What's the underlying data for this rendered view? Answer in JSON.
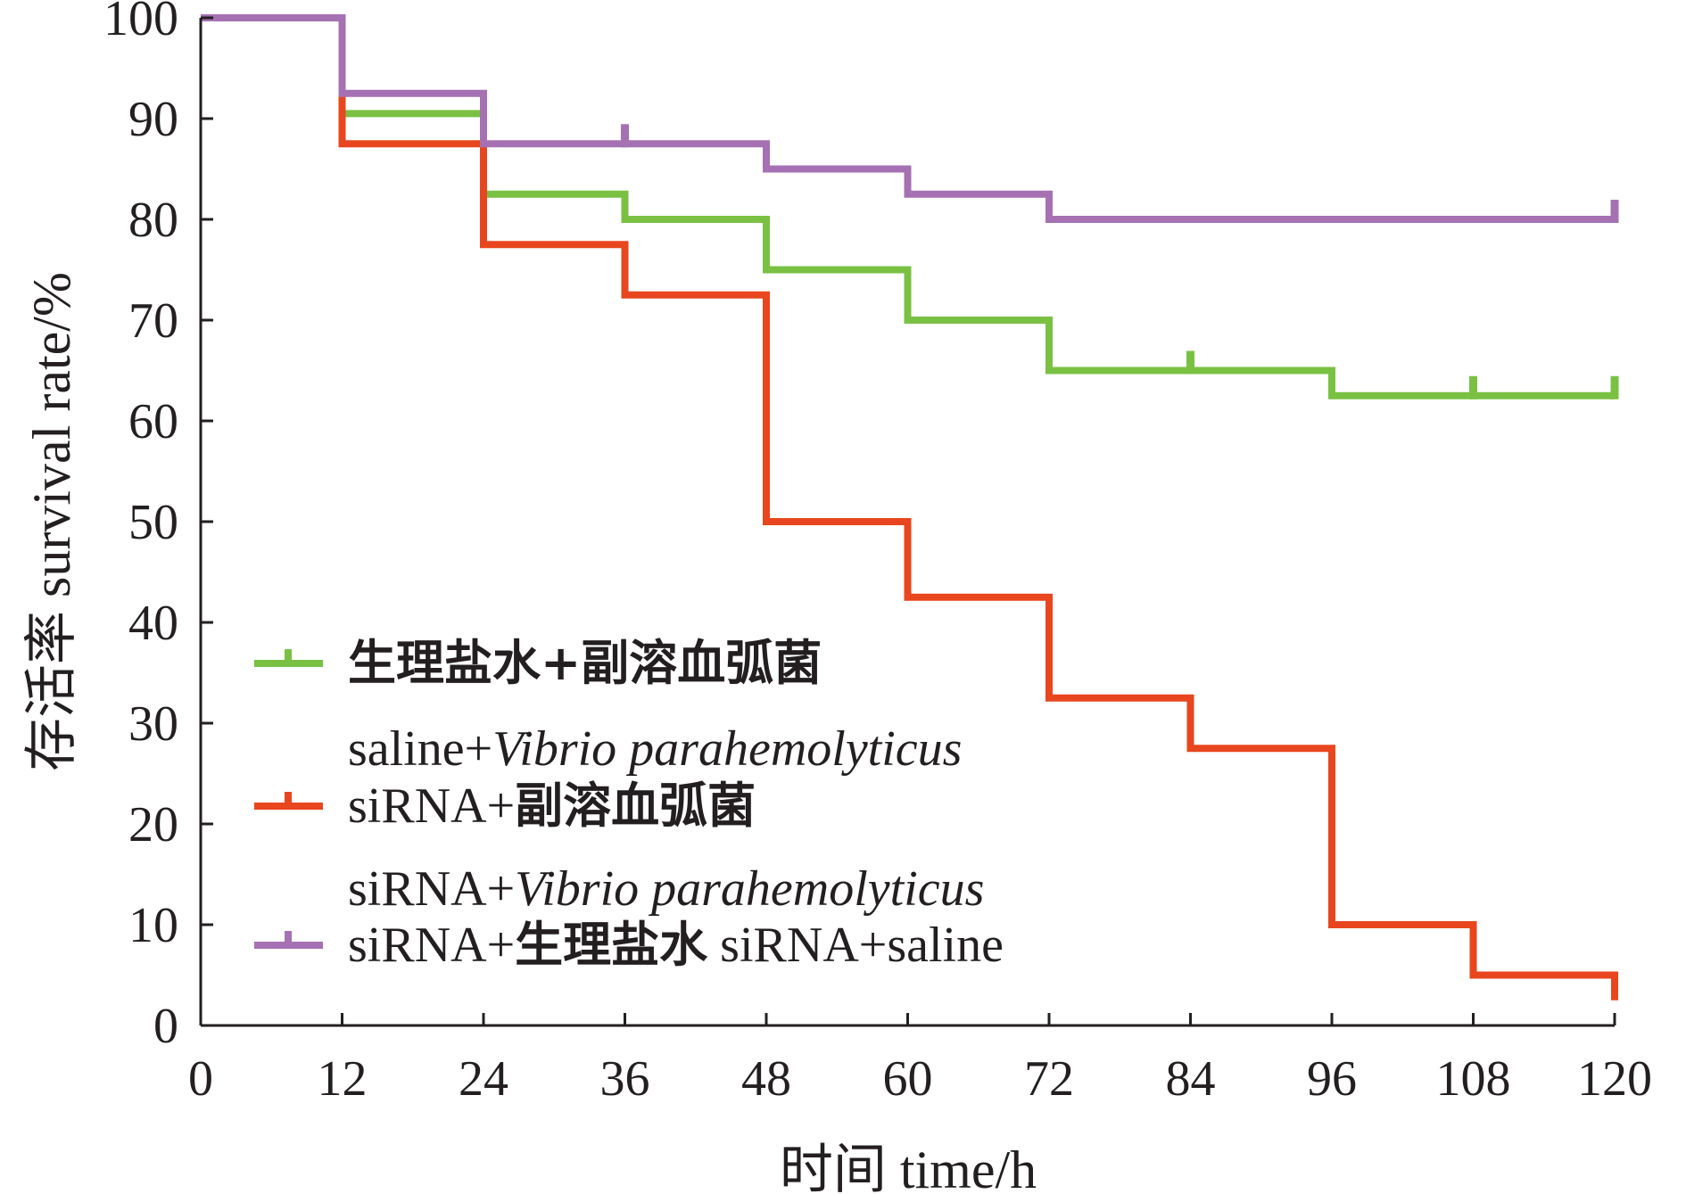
{
  "chart_data": {
    "type": "line",
    "step": true,
    "xlabel": "时间 time/h",
    "ylabel": "存活率 survival rate/%",
    "xlim": [
      0,
      120
    ],
    "ylim": [
      0,
      100
    ],
    "x_ticks": [
      "0",
      "12",
      "24",
      "36",
      "48",
      "60",
      "72",
      "84",
      "96",
      "108",
      "120"
    ],
    "y_ticks": [
      "0",
      "10",
      "20",
      "30",
      "40",
      "50",
      "60",
      "70",
      "80",
      "90",
      "100"
    ],
    "grid": false,
    "legend_position": "lower-left",
    "series": [
      {
        "name": "生理盐水+副溶血弧菌",
        "name_en": "saline+Vibrio parahemolyticus",
        "color": "#7ac143",
        "x": [
          0,
          12,
          24,
          36,
          48,
          60,
          72,
          96,
          120
        ],
        "y": [
          100,
          90.5,
          82.5,
          80,
          75,
          70,
          65,
          62.5,
          62.5
        ],
        "censored": [
          [
            84,
            65
          ],
          [
            108,
            62.5
          ],
          [
            120,
            62.5
          ]
        ]
      },
      {
        "name": "siRNA+副溶血弧菌",
        "name_en": "siRNA+Vibrio parahemolyticus",
        "color": "#e8461e",
        "x": [
          0,
          12,
          24,
          36,
          48,
          60,
          72,
          84,
          96,
          108,
          120
        ],
        "y": [
          100,
          87.5,
          77.5,
          72.5,
          50,
          42.5,
          32.5,
          27.5,
          10,
          5,
          2.5
        ],
        "censored": []
      },
      {
        "name": "siRNA+生理盐水",
        "name_en": "siRNA+saline",
        "color": "#a571b3",
        "x": [
          0,
          12,
          24,
          48,
          60,
          72,
          120
        ],
        "y": [
          100,
          92.5,
          87.5,
          85,
          82.5,
          80,
          80
        ],
        "censored": [
          [
            36,
            87.5
          ],
          [
            120,
            80
          ]
        ]
      }
    ]
  }
}
